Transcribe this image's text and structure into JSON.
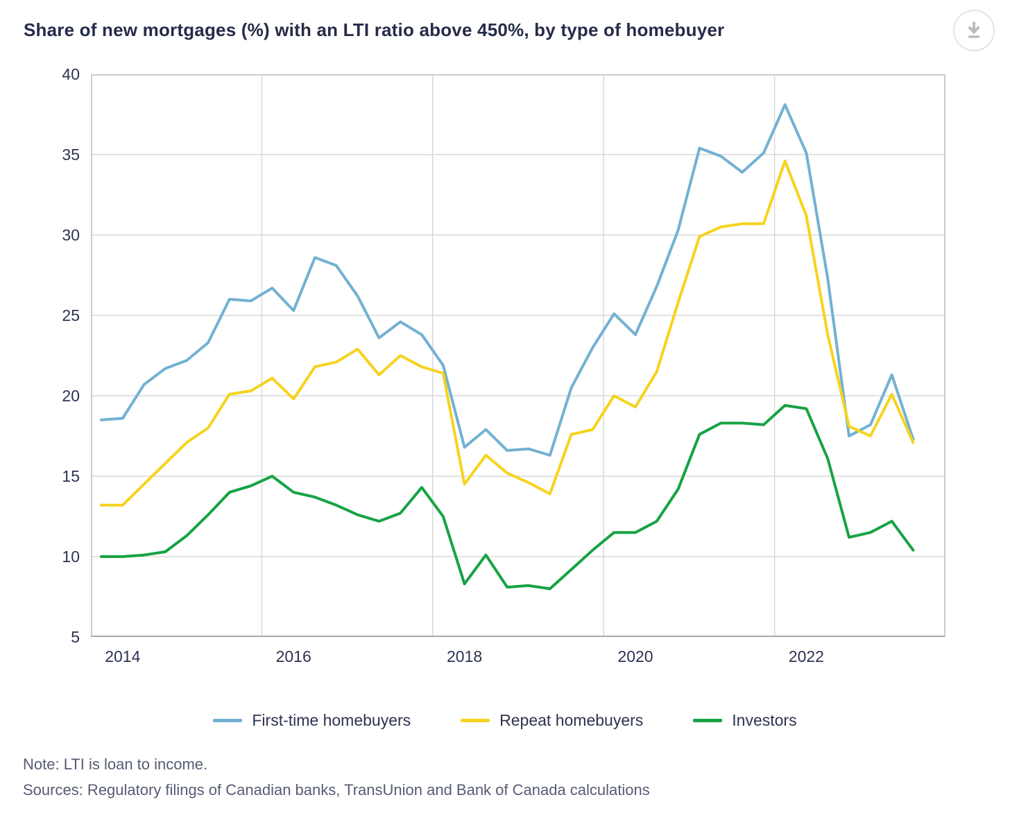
{
  "header": {
    "title": "Share of new mortgages (%) with an LTI ratio above 450%, by type of homebuyer"
  },
  "footer": {
    "note": "Note: LTI is loan to income.",
    "sources": "Sources: Regulatory filings of Canadian banks, TransUnion and Bank of Canada calculations"
  },
  "colors": {
    "first_time": "#72b1d3",
    "repeat": "#f6d31e",
    "investors": "#16a344",
    "grid": "#d9d9d9",
    "axis_border": "#cccccc",
    "axis_bottom": "#a9a9a9",
    "title_text": "#262b49",
    "tick_text": "#2d3250",
    "note_text": "#565b73"
  },
  "chart_data": {
    "type": "line",
    "title": "Share of new mortgages (%) with an LTI ratio above 450%, by type of homebuyer",
    "xlabel": "",
    "ylabel": "",
    "ylim": [
      5,
      40
    ],
    "grid": true,
    "legend_position": "bottom",
    "y_ticks": [
      40,
      35,
      30,
      25,
      20,
      15,
      10,
      5
    ],
    "x_tick_labels": [
      "2014",
      "2016",
      "2018",
      "2020",
      "2022"
    ],
    "x_tick_indices": [
      1,
      9,
      17,
      25,
      33
    ],
    "x_categories": [
      "2013Q4",
      "2014Q1",
      "2014Q2",
      "2014Q3",
      "2014Q4",
      "2015Q1",
      "2015Q2",
      "2015Q3",
      "2015Q4",
      "2016Q1",
      "2016Q2",
      "2016Q3",
      "2016Q4",
      "2017Q1",
      "2017Q2",
      "2017Q3",
      "2017Q4",
      "2018Q1",
      "2018Q2",
      "2018Q3",
      "2018Q4",
      "2019Q1",
      "2019Q2",
      "2019Q3",
      "2019Q4",
      "2020Q1",
      "2020Q2",
      "2020Q3",
      "2020Q4",
      "2021Q1",
      "2021Q2",
      "2021Q3",
      "2021Q4",
      "2022Q1",
      "2022Q2",
      "2022Q3",
      "2022Q4",
      "2023Q1",
      "2023Q2"
    ],
    "series": [
      {
        "name": "First-time homebuyers",
        "color": "#72b1d3",
        "values": [
          18.5,
          18.6,
          20.7,
          21.7,
          22.2,
          23.3,
          26.0,
          25.9,
          26.7,
          25.3,
          28.6,
          28.1,
          26.2,
          23.6,
          24.6,
          23.8,
          21.9,
          16.8,
          17.9,
          16.6,
          16.7,
          16.3,
          20.5,
          23.0,
          25.1,
          23.8,
          26.8,
          30.3,
          35.4,
          34.9,
          33.9,
          35.1,
          38.1,
          35.1,
          27.3,
          17.5,
          18.2,
          21.3,
          17.3
        ]
      },
      {
        "name": "Repeat homebuyers",
        "color": "#f6d31e",
        "values": [
          13.2,
          13.2,
          14.5,
          15.8,
          17.1,
          18.0,
          20.1,
          20.3,
          21.1,
          19.8,
          21.8,
          22.1,
          22.9,
          21.3,
          22.5,
          21.8,
          21.4,
          14.5,
          16.3,
          15.2,
          14.6,
          13.9,
          17.6,
          17.9,
          20.0,
          19.3,
          21.5,
          25.8,
          29.9,
          30.5,
          30.7,
          30.7,
          34.6,
          31.2,
          23.8,
          18.1,
          17.5,
          20.1,
          17.1
        ]
      },
      {
        "name": "Investors",
        "color": "#16a344",
        "values": [
          10.0,
          10.0,
          10.1,
          10.3,
          11.3,
          12.6,
          14.0,
          14.4,
          15.0,
          14.0,
          13.7,
          13.2,
          12.6,
          12.2,
          12.7,
          14.3,
          12.5,
          8.3,
          10.1,
          8.1,
          8.2,
          8.0,
          9.2,
          10.4,
          11.5,
          11.5,
          12.2,
          14.2,
          17.6,
          18.3,
          18.3,
          18.2,
          19.4,
          19.2,
          16.1,
          11.2,
          11.5,
          12.2,
          10.4
        ]
      }
    ]
  }
}
